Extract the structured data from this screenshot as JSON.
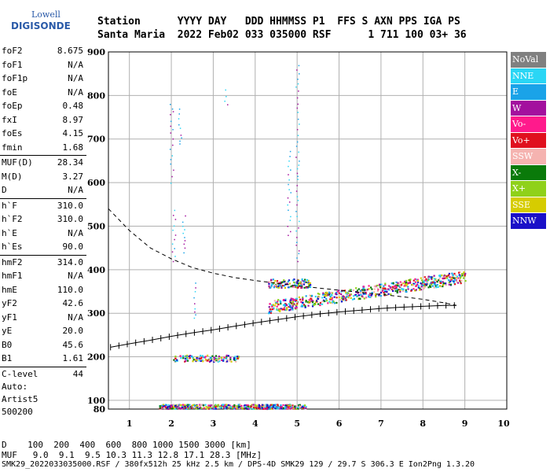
{
  "logo": {
    "line1": "Lowell",
    "line2": "DIGISONDE"
  },
  "header": {
    "line1": "Station      YYYY DAY   DDD HHMMSS P1  FFS S AXN PPS IGA PS",
    "line2": "Santa Maria  2022 Feb02 033 035000 RSF      1 711 100 03+ 36"
  },
  "params": [
    {
      "k": "foF2",
      "v": "8.675"
    },
    {
      "k": "foF1",
      "v": "N/A"
    },
    {
      "k": "foF1p",
      "v": "N/A"
    },
    {
      "k": "foE",
      "v": "N/A"
    },
    {
      "k": "foEp",
      "v": "0.48"
    },
    {
      "k": "fxI",
      "v": "8.97"
    },
    {
      "k": "foEs",
      "v": "4.15"
    },
    {
      "k": "fmin",
      "v": "1.68"
    },
    {
      "k": "MUF(D)",
      "v": "28.34"
    },
    {
      "k": "M(D)",
      "v": "3.27"
    },
    {
      "k": "D",
      "v": "N/A"
    },
    {
      "k": "h`F",
      "v": "310.0"
    },
    {
      "k": "h`F2",
      "v": "310.0"
    },
    {
      "k": "h`E",
      "v": "N/A"
    },
    {
      "k": "h`Es",
      "v": "90.0"
    },
    {
      "k": "hmF2",
      "v": "314.0"
    },
    {
      "k": "hmF1",
      "v": "N/A"
    },
    {
      "k": "hmE",
      "v": "110.0"
    },
    {
      "k": "yF2",
      "v": "42.6"
    },
    {
      "k": "yF1",
      "v": "N/A"
    },
    {
      "k": "yE",
      "v": "20.0"
    },
    {
      "k": "B0",
      "v": "45.6"
    },
    {
      "k": "B1",
      "v": "1.61"
    },
    {
      "k": "C-level",
      "v": "44"
    }
  ],
  "auto": [
    "Auto:",
    "Artist5",
    "500200"
  ],
  "legend": [
    {
      "label": "NoVal",
      "color": "#808080"
    },
    {
      "label": "NNE",
      "color": "#2ad6f5"
    },
    {
      "label": "E",
      "color": "#1aa3e8"
    },
    {
      "label": "W",
      "color": "#a3109e"
    },
    {
      "label": "Vo-",
      "color": "#ff1a8c"
    },
    {
      "label": "Vo+",
      "color": "#e0101e"
    },
    {
      "label": "SSW",
      "color": "#f5b3b0"
    },
    {
      "label": "X-",
      "color": "#0a7a0a"
    },
    {
      "label": "X+",
      "color": "#8fd11a"
    },
    {
      "label": "SSE",
      "color": "#d6cc00"
    },
    {
      "label": "NNW",
      "color": "#1a10c8"
    }
  ],
  "bottom": {
    "line1": "D    100  200  400  600  800 1000 1500 3000 [km]",
    "line2": "MUF   9.0  9.1  9.5 10.3 11.3 12.8 17.1 28.3 [MHz]",
    "line3": "SMK29_2022033035000.RSF / 380fx512h 25 kHz 2.5 km / DPS-4D SMK29 129 / 29.7 S 306.3 E Ion2Png 1.3.20"
  },
  "chart_data": {
    "type": "scatter",
    "xlim": [
      0.5,
      10
    ],
    "ylim": [
      80,
      900
    ],
    "xticks": [
      1,
      2,
      3,
      4,
      5,
      6,
      7,
      8,
      9,
      10
    ],
    "yticks": [
      80,
      100,
      200,
      300,
      400,
      500,
      600,
      700,
      800,
      900
    ],
    "grid": true,
    "ionogram_profile": {
      "x": [
        0.55,
        1.0,
        1.5,
        2.0,
        2.5,
        3.0,
        3.5,
        4.0,
        4.5,
        5.0,
        5.5,
        6.0,
        6.5,
        7.0,
        7.5,
        8.0,
        8.5,
        8.8
      ],
      "y": [
        222,
        230,
        238,
        247,
        255,
        262,
        270,
        278,
        285,
        292,
        298,
        303,
        307,
        311,
        314,
        316,
        318,
        318
      ]
    },
    "dashed_topside": {
      "x": [
        0.5,
        1.0,
        1.5,
        2.0,
        2.5,
        3.0,
        3.5,
        4.0,
        4.5,
        5.0,
        5.5,
        6.0,
        6.5,
        7.0,
        7.5,
        8.0,
        8.5,
        8.8
      ],
      "y": [
        540,
        490,
        450,
        425,
        405,
        392,
        382,
        375,
        369,
        363,
        358,
        353,
        348,
        343,
        338,
        332,
        324,
        318
      ]
    },
    "trace_groups": [
      {
        "name": "F2 trace",
        "x0": 4.3,
        "x1": 9.0,
        "y0": 310,
        "y1": 400
      },
      {
        "name": "Es trace",
        "x0": 1.7,
        "x1": 5.2,
        "y0": 82,
        "y1": 92
      },
      {
        "name": "Es 2nd hop",
        "x0": 2.0,
        "x1": 3.6,
        "y0": 190,
        "y1": 205
      },
      {
        "name": "spread 1",
        "x0": 4.3,
        "x1": 5.3,
        "y0": 360,
        "y1": 380
      }
    ]
  }
}
